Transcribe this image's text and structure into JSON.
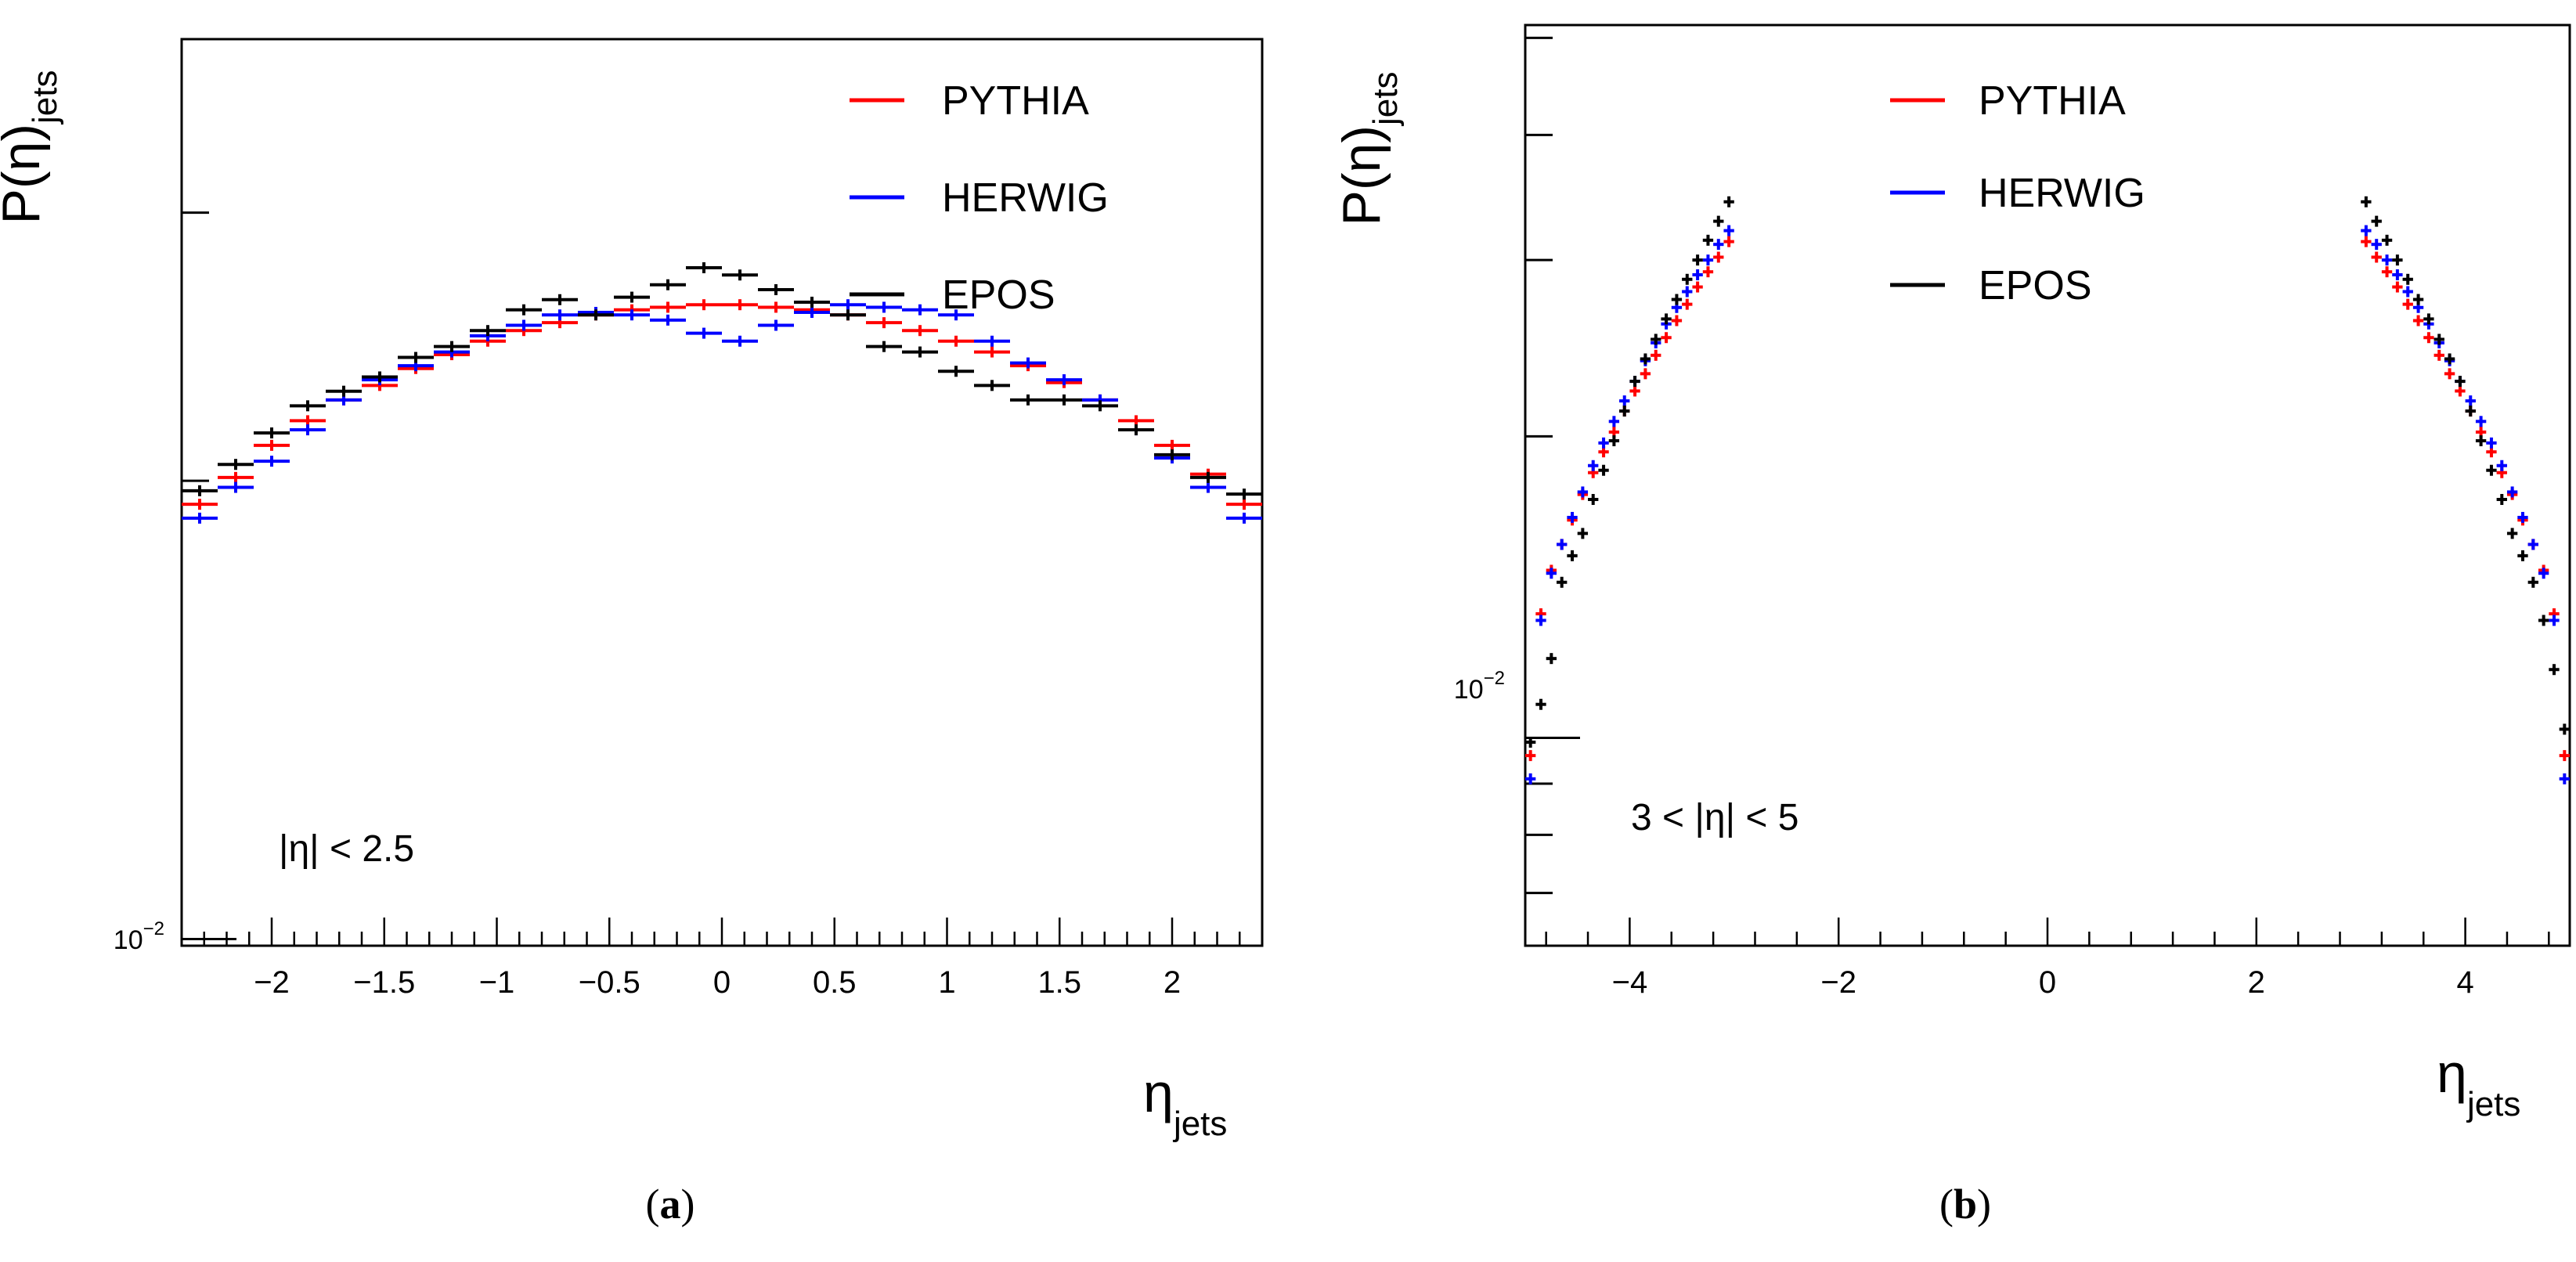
{
  "chart_data": [
    {
      "type": "scatter",
      "panel": "a",
      "caption_letter": "a",
      "ylabel_main": "P(η)",
      "ylabel_sub": "jets",
      "xlabel_main": "η",
      "xlabel_sub": "jets",
      "y_scale": "log",
      "xlim": [
        -2.4,
        2.4
      ],
      "ylim": [
        0.0099,
        0.039
      ],
      "x_ticks": [
        -2,
        -1.5,
        -1,
        -0.5,
        0,
        0.5,
        1,
        1.5,
        2
      ],
      "x_tick_labels": [
        "−2",
        "−1.5",
        "−1",
        "−0.5",
        "0",
        "0.5",
        "1",
        "1.5",
        "2"
      ],
      "y_tick_label": "10",
      "y_tick_label_exp": "−2",
      "y_major_ticks": [
        0.01
      ],
      "y_minor_ticks": [
        0.02,
        0.03
      ],
      "annotation": "|η| < 2.5",
      "legend_position": "top-right",
      "bin_width": 0.16,
      "series": [
        {
          "name": "PYTHIA",
          "color": "#ff0000",
          "x": [
            -2.32,
            -2.16,
            -2.0,
            -1.84,
            -1.68,
            -1.52,
            -1.36,
            -1.2,
            -1.04,
            -0.88,
            -0.72,
            -0.56,
            -0.4,
            -0.24,
            -0.08,
            0.08,
            0.24,
            0.4,
            0.56,
            0.72,
            0.88,
            1.04,
            1.2,
            1.36,
            1.52,
            1.68,
            1.84,
            2.0,
            2.16,
            2.32
          ],
          "y": [
            0.0193,
            0.0201,
            0.0211,
            0.0219,
            0.0226,
            0.0231,
            0.0237,
            0.0242,
            0.0247,
            0.0251,
            0.0254,
            0.0257,
            0.0259,
            0.026,
            0.0261,
            0.0261,
            0.026,
            0.0259,
            0.0257,
            0.0254,
            0.0251,
            0.0247,
            0.0243,
            0.0238,
            0.0232,
            0.0226,
            0.0219,
            0.0211,
            0.0202,
            0.0193
          ]
        },
        {
          "name": "HERWIG",
          "color": "#0000ff",
          "x": [
            -2.32,
            -2.16,
            -2.0,
            -1.84,
            -1.68,
            -1.52,
            -1.36,
            -1.2,
            -1.04,
            -0.88,
            -0.72,
            -0.56,
            -0.4,
            -0.24,
            -0.08,
            0.08,
            0.24,
            0.4,
            0.56,
            0.72,
            0.88,
            1.04,
            1.2,
            1.36,
            1.52,
            1.68,
            1.84,
            2.0,
            2.16,
            2.32
          ],
          "y": [
            0.0189,
            0.0198,
            0.0206,
            0.0216,
            0.0226,
            0.0233,
            0.0238,
            0.0243,
            0.0249,
            0.0253,
            0.0257,
            0.0258,
            0.0257,
            0.0255,
            0.025,
            0.0247,
            0.0253,
            0.0258,
            0.0261,
            0.026,
            0.0259,
            0.0257,
            0.0247,
            0.0239,
            0.0233,
            0.0226,
            0.0216,
            0.0207,
            0.0198,
            0.0189
          ]
        },
        {
          "name": "EPOS",
          "color": "#000000",
          "x": [
            -2.32,
            -2.16,
            -2.0,
            -1.84,
            -1.68,
            -1.52,
            -1.36,
            -1.2,
            -1.04,
            -0.88,
            -0.72,
            -0.56,
            -0.4,
            -0.24,
            -0.08,
            0.08,
            0.24,
            0.4,
            0.56,
            0.72,
            0.88,
            1.04,
            1.2,
            1.36,
            1.52,
            1.68,
            1.84,
            2.0,
            2.16,
            2.32
          ],
          "y": [
            0.0197,
            0.0205,
            0.0215,
            0.0224,
            0.0229,
            0.0234,
            0.0241,
            0.0245,
            0.0251,
            0.0259,
            0.0263,
            0.0257,
            0.0264,
            0.0269,
            0.0276,
            0.0273,
            0.0267,
            0.0262,
            0.0257,
            0.0245,
            0.0243,
            0.0236,
            0.0231,
            0.0226,
            0.0226,
            0.0224,
            0.0216,
            0.0208,
            0.0201,
            0.0196
          ]
        }
      ]
    },
    {
      "type": "scatter",
      "panel": "b",
      "caption_letter": "b",
      "ylabel_main": "P(η)",
      "ylabel_sub": "jets",
      "xlabel_main": "η",
      "xlabel_sub": "jets",
      "y_scale": "log",
      "xlim": [
        -5,
        5
      ],
      "ylim": [
        0.0062,
        0.0515
      ],
      "x_ticks": [
        -4,
        -2,
        0,
        2,
        4
      ],
      "x_tick_labels": [
        "−4",
        "−2",
        "0",
        "2",
        "4"
      ],
      "y_tick_label": "10",
      "y_tick_label_exp": "−2",
      "y_major_ticks": [
        0.01
      ],
      "y_minor_ticks": [
        0.007,
        0.008,
        0.009,
        0.02,
        0.03,
        0.04,
        0.05
      ],
      "annotation": "3 < |η| < 5",
      "legend_position": "top-center",
      "bin_width": 0.1,
      "series": [
        {
          "name": "PYTHIA",
          "color": "#ff0000",
          "x": [
            -4.95,
            -4.85,
            -4.75,
            -4.65,
            -4.55,
            -4.45,
            -4.35,
            -4.25,
            -4.15,
            -4.05,
            -3.95,
            -3.85,
            -3.75,
            -3.65,
            -3.55,
            -3.45,
            -3.35,
            -3.25,
            -3.15,
            -3.05,
            3.05,
            3.15,
            3.25,
            3.35,
            3.45,
            3.55,
            3.65,
            3.75,
            3.85,
            3.95,
            4.05,
            4.15,
            4.25,
            4.35,
            4.45,
            4.55,
            4.65,
            4.75,
            4.85,
            4.95
          ],
          "y": [
            0.0096,
            0.0133,
            0.0147,
            0.0156,
            0.0165,
            0.0175,
            0.0184,
            0.0193,
            0.0202,
            0.0212,
            0.0222,
            0.0231,
            0.0241,
            0.0251,
            0.0261,
            0.0271,
            0.0282,
            0.0292,
            0.0302,
            0.0313,
            0.0313,
            0.0302,
            0.0292,
            0.0282,
            0.0271,
            0.0261,
            0.0251,
            0.0241,
            0.0231,
            0.0222,
            0.0212,
            0.0202,
            0.0193,
            0.0184,
            0.0175,
            0.0165,
            0.0156,
            0.0147,
            0.0133,
            0.0096
          ]
        },
        {
          "name": "HERWIG",
          "color": "#0000ff",
          "x": [
            -4.95,
            -4.85,
            -4.75,
            -4.65,
            -4.55,
            -4.45,
            -4.35,
            -4.25,
            -4.15,
            -4.05,
            -3.95,
            -3.85,
            -3.75,
            -3.65,
            -3.55,
            -3.45,
            -3.35,
            -3.25,
            -3.15,
            -3.05,
            3.05,
            3.15,
            3.25,
            3.35,
            3.45,
            3.55,
            3.65,
            3.75,
            3.85,
            3.95,
            4.05,
            4.15,
            4.25,
            4.35,
            4.45,
            4.55,
            4.65,
            4.75,
            4.85,
            4.95
          ],
          "y": [
            0.0091,
            0.0131,
            0.0146,
            0.0156,
            0.0166,
            0.0176,
            0.0187,
            0.0197,
            0.0207,
            0.0217,
            0.0227,
            0.0238,
            0.0248,
            0.0259,
            0.0269,
            0.0279,
            0.029,
            0.03,
            0.0311,
            0.0321,
            0.0321,
            0.0311,
            0.03,
            0.029,
            0.0279,
            0.0269,
            0.0259,
            0.0248,
            0.0238,
            0.0227,
            0.0217,
            0.0207,
            0.0197,
            0.0187,
            0.0176,
            0.0166,
            0.0156,
            0.0146,
            0.0131,
            0.0091
          ]
        },
        {
          "name": "EPOS",
          "color": "#000000",
          "x": [
            -4.95,
            -4.85,
            -4.75,
            -4.65,
            -4.55,
            -4.45,
            -4.35,
            -4.25,
            -4.15,
            -4.05,
            -3.95,
            -3.85,
            -3.75,
            -3.65,
            -3.55,
            -3.45,
            -3.35,
            -3.25,
            -3.15,
            -3.05,
            3.05,
            3.15,
            3.25,
            3.35,
            3.45,
            3.55,
            3.65,
            3.75,
            3.85,
            3.95,
            4.05,
            4.15,
            4.25,
            4.35,
            4.45,
            4.55,
            4.65,
            4.75,
            4.85,
            4.95
          ],
          "y": [
            0.0099,
            0.0108,
            0.012,
            0.0143,
            0.0152,
            0.016,
            0.0173,
            0.0185,
            0.0198,
            0.0212,
            0.0227,
            0.0239,
            0.025,
            0.0262,
            0.0274,
            0.0287,
            0.03,
            0.0314,
            0.0328,
            0.0343,
            0.0343,
            0.0328,
            0.0314,
            0.03,
            0.0287,
            0.0274,
            0.0262,
            0.025,
            0.0239,
            0.0227,
            0.0212,
            0.0198,
            0.0185,
            0.0173,
            0.016,
            0.0152,
            0.0143,
            0.0131,
            0.0117,
            0.0102
          ]
        }
      ]
    }
  ]
}
